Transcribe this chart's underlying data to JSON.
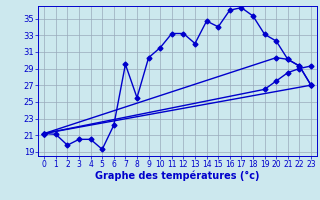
{
  "xlabel": "Graphe des températures (°c)",
  "xlim": [
    -0.5,
    23.5
  ],
  "ylim": [
    18.5,
    36.5
  ],
  "yticks": [
    19,
    21,
    23,
    25,
    27,
    29,
    31,
    33,
    35
  ],
  "xticks": [
    0,
    1,
    2,
    3,
    4,
    5,
    6,
    7,
    8,
    9,
    10,
    11,
    12,
    13,
    14,
    15,
    16,
    17,
    18,
    19,
    20,
    21,
    22,
    23
  ],
  "background_color": "#cce8ee",
  "grid_color": "#99aabb",
  "line_color": "#0000cc",
  "lines": [
    {
      "x": [
        0,
        1,
        2,
        3,
        4,
        5,
        6,
        7,
        8,
        9,
        10,
        11,
        12,
        13,
        14,
        15,
        16,
        17,
        18,
        19,
        20,
        21,
        22,
        23
      ],
      "y": [
        21.2,
        21.1,
        19.8,
        20.5,
        20.5,
        19.3,
        22.2,
        29.5,
        25.5,
        30.3,
        31.5,
        33.2,
        33.2,
        32.0,
        34.7,
        34.0,
        36.0,
        36.3,
        35.3,
        33.1,
        32.3,
        30.1,
        29.3,
        27.0
      ],
      "marker": "D",
      "markersize": 2.5,
      "linewidth": 1.0
    },
    {
      "x": [
        0,
        20,
        21,
        22,
        23
      ],
      "y": [
        21.2,
        30.3,
        30.1,
        29.3,
        27.0
      ],
      "marker": "D",
      "markersize": 2.5,
      "linewidth": 1.0
    },
    {
      "x": [
        0,
        19,
        20,
        21,
        22,
        23
      ],
      "y": [
        21.2,
        26.5,
        27.5,
        28.5,
        29.0,
        29.3
      ],
      "marker": "D",
      "markersize": 2.5,
      "linewidth": 1.0
    },
    {
      "x": [
        0,
        23
      ],
      "y": [
        21.2,
        27.0
      ],
      "marker": "D",
      "markersize": 2.5,
      "linewidth": 1.0
    }
  ]
}
